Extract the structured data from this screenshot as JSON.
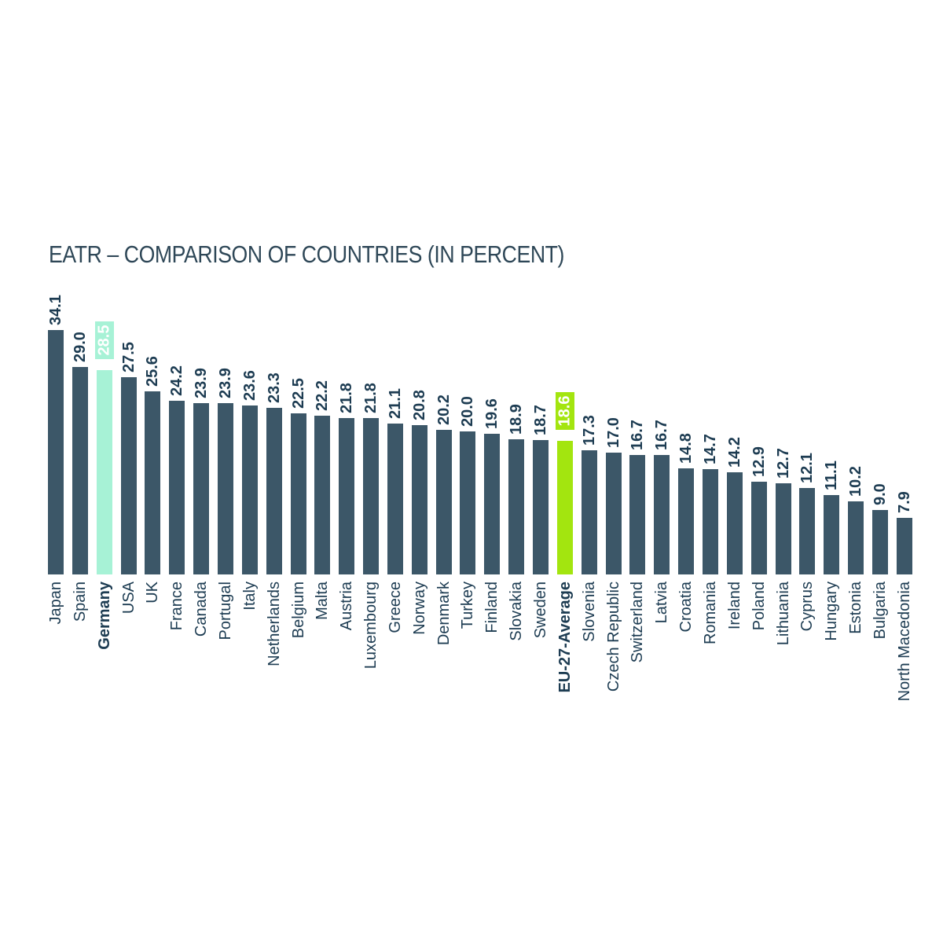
{
  "chart_data": {
    "type": "bar",
    "title": "EATR – COMPARISON OF COUNTRIES (IN PERCENT)",
    "xlabel": "",
    "ylabel": "",
    "unit": "%",
    "ylim": [
      0,
      35
    ],
    "grid": false,
    "axes_visible": false,
    "legend": null,
    "value_label_style": "rotated 90deg above each bar",
    "category_label_style": "rotated 90deg below each bar",
    "categories": [
      "Japan",
      "Spain",
      "Germany",
      "USA",
      "UK",
      "France",
      "Canada",
      "Portugal",
      "Italy",
      "Netherlands",
      "Belgium",
      "Malta",
      "Austria",
      "Luxembourg",
      "Greece",
      "Norway",
      "Denmark",
      "Turkey",
      "Finland",
      "Slovakia",
      "Sweden",
      "EU-27-Average",
      "Slovenia",
      "Czech Republic",
      "Switzerland",
      "Latvia",
      "Croatia",
      "Romania",
      "Ireland",
      "Poland",
      "Lithuania",
      "Cyprus",
      "Hungary",
      "Estonia",
      "Bulgaria",
      "North Macedonia"
    ],
    "values": [
      34.1,
      29.0,
      28.5,
      27.5,
      25.6,
      24.2,
      23.9,
      23.9,
      23.6,
      23.3,
      22.5,
      22.2,
      21.8,
      21.8,
      21.1,
      20.8,
      20.2,
      20.0,
      19.6,
      18.9,
      18.7,
      18.6,
      17.3,
      17.0,
      16.7,
      16.7,
      14.8,
      14.7,
      14.2,
      12.9,
      12.7,
      12.1,
      11.1,
      10.2,
      9.0,
      7.9
    ],
    "highlights": {
      "Germany": "mint",
      "EU-27-Average": "lime"
    },
    "highlight_note": "Highlighted bars show their value as white text inside a colored box floating above the bar; highlighted category labels are bold"
  },
  "colors": {
    "bar": "#3c5768",
    "mint": "#a7f2d6",
    "lime": "#a3e50f",
    "label_text": "#1d3c52",
    "title_text": "#2e4757",
    "highlight_value_text": "#ffffff",
    "background": "#ffffff"
  }
}
